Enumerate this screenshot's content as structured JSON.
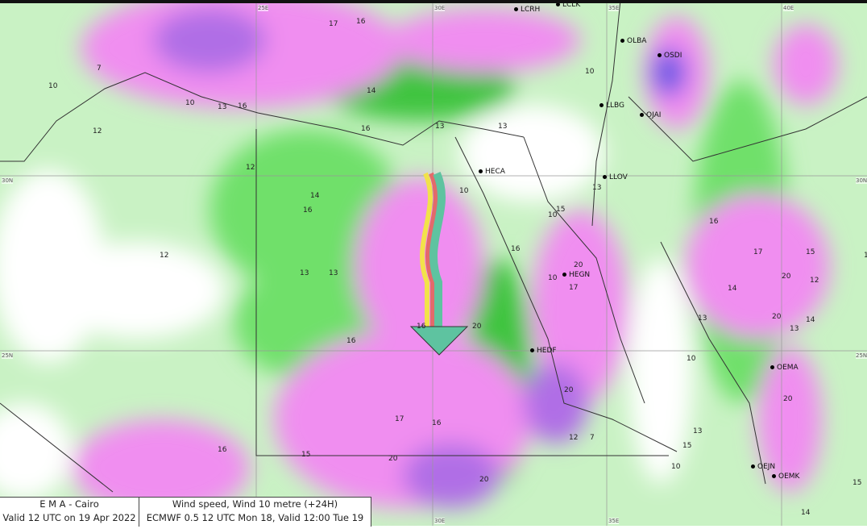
{
  "header": {
    "source": "E M A  -  Cairo",
    "valid": "Valid 12 UTC on 19 Apr 2022",
    "title": "Wind speed, Wind  10 metre (+24H)",
    "model": "ECMWF 0.5 12 UTC Mon 18, Valid 12:00 Tue 19"
  },
  "colors": {
    "calm": "#ffffff",
    "light": "#c9f2c4",
    "mid": "#6fe06a",
    "strong": "#3fc43f",
    "high": "#f08ef0",
    "very_high": "#b06ee6",
    "extreme": "#6a5ae6"
  },
  "grid_labels": {
    "lat30": "30N",
    "lat25": "25N",
    "lat30_r": "30N",
    "lat25_r": "25N",
    "lon25": "25E",
    "lon30": "30E",
    "lon35": "35E",
    "lon40": "40E",
    "lon30_b": "30E",
    "lon35_b": "35E"
  },
  "stations": [
    "LCRH",
    "LCLK",
    "OLBA",
    "OSDI",
    "LLBG",
    "OJAI",
    "HECA",
    "LLOV",
    "HEGN",
    "HEDF",
    "OEMA",
    "OEJN",
    "OEMK"
  ],
  "contours": [
    "7",
    "10",
    "10",
    "12",
    "13",
    "14",
    "16",
    "17",
    "16",
    "16",
    "10",
    "13",
    "13",
    "12",
    "14",
    "16",
    "10",
    "12",
    "13",
    "13",
    "10",
    "15",
    "16",
    "20",
    "17",
    "10",
    "13",
    "16",
    "17",
    "16",
    "20",
    "20",
    "20",
    "14",
    "15",
    "13",
    "16",
    "20",
    "17",
    "15",
    "12",
    "14",
    "10",
    "15",
    "20",
    "12",
    "13",
    "16",
    "20",
    "7",
    "17",
    "15",
    "14",
    "13",
    "10",
    "16",
    "20"
  ]
}
